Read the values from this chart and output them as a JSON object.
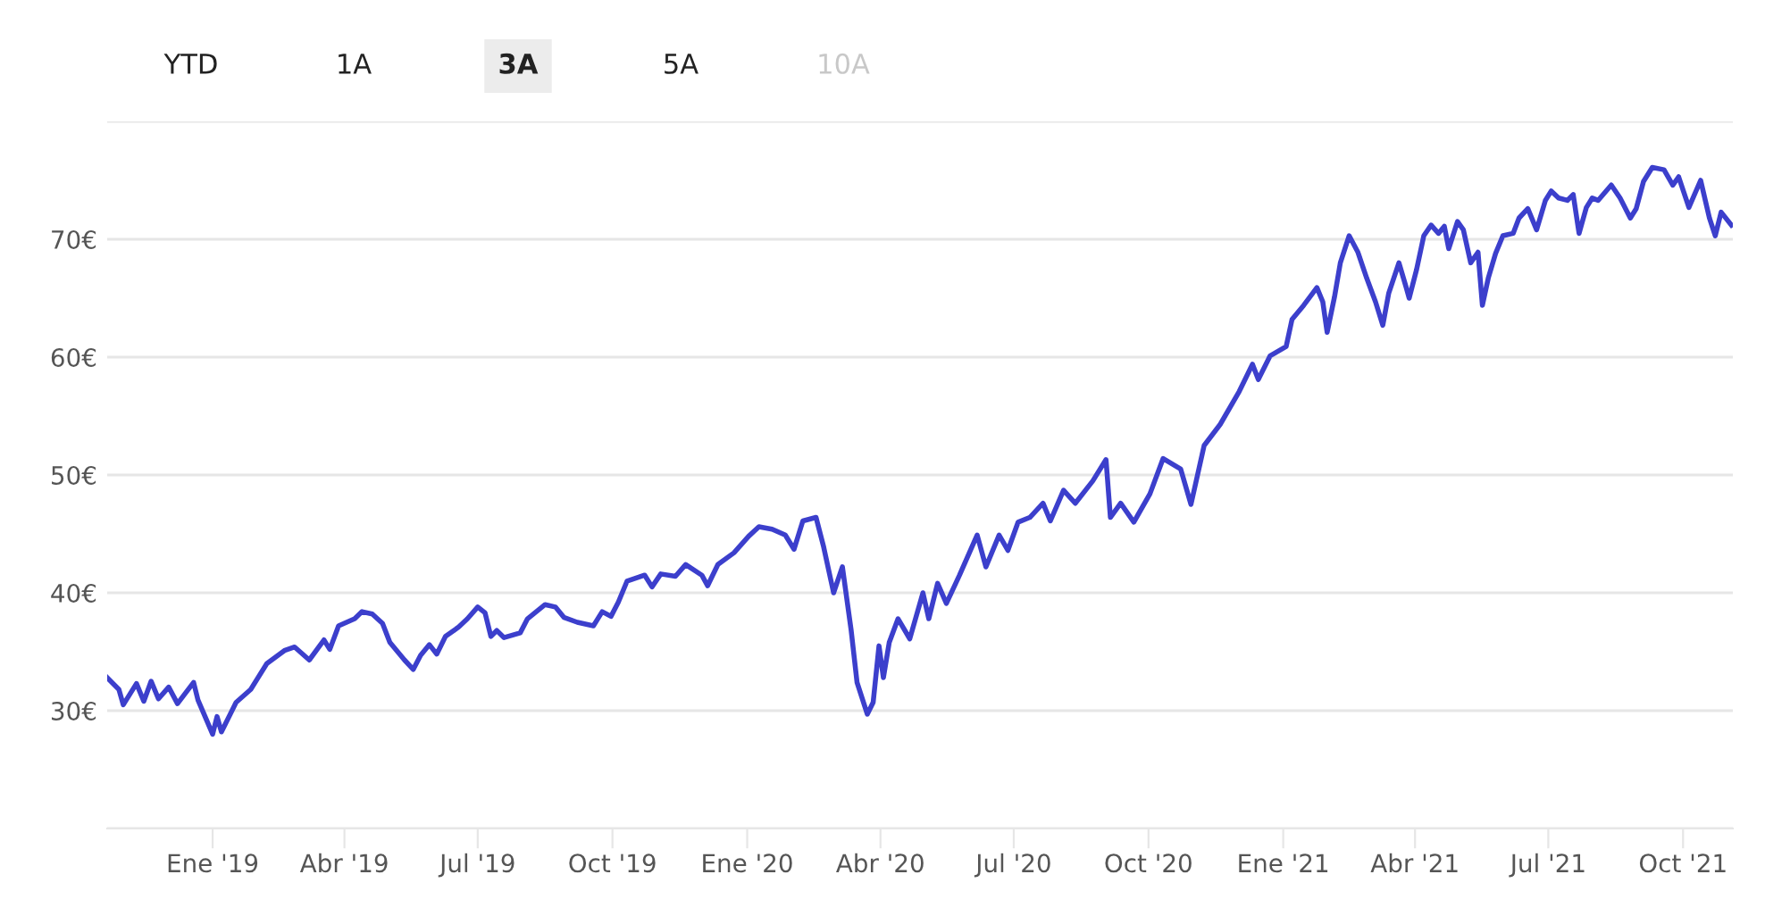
{
  "chart_data": {
    "type": "line",
    "annotations": [
      "YTD",
      "1A",
      "3A",
      "5A",
      "10A"
    ],
    "x": [
      "2018-10-21",
      "2018-10-29",
      "2018-11-01",
      "2018-11-10",
      "2018-11-15",
      "2018-11-20",
      "2018-11-25",
      "2018-12-02",
      "2018-12-08",
      "2018-12-19",
      "2018-12-22",
      "2019-01-01",
      "2019-01-04",
      "2019-01-07",
      "2019-01-17",
      "2019-01-27",
      "2019-02-07",
      "2019-02-19",
      "2019-02-26",
      "2019-03-08",
      "2019-03-18",
      "2019-03-22",
      "2019-03-28",
      "2019-04-08",
      "2019-04-13",
      "2019-04-20",
      "2019-04-27",
      "2019-05-02",
      "2019-05-12",
      "2019-05-18",
      "2019-05-23",
      "2019-05-29",
      "2019-06-03",
      "2019-06-09",
      "2019-06-18",
      "2019-06-24",
      "2019-07-01",
      "2019-07-06",
      "2019-07-10",
      "2019-07-14",
      "2019-07-19",
      "2019-07-30",
      "2019-08-04",
      "2019-08-16",
      "2019-08-23",
      "2019-08-29",
      "2019-09-07",
      "2019-09-18",
      "2019-09-24",
      "2019-09-30",
      "2019-10-05",
      "2019-10-11",
      "2019-10-23",
      "2019-10-28",
      "2019-11-03",
      "2019-11-13",
      "2019-11-20",
      "2019-12-01",
      "2019-12-05",
      "2019-12-12",
      "2019-12-23",
      "2020-01-02",
      "2020-01-09",
      "2020-01-18",
      "2020-01-27",
      "2020-02-02",
      "2020-02-08",
      "2020-02-17",
      "2020-02-22",
      "2020-02-29",
      "2020-03-06",
      "2020-03-12",
      "2020-03-16",
      "2020-03-23",
      "2020-03-27",
      "2020-03-31",
      "2020-04-03",
      "2020-04-07",
      "2020-04-13",
      "2020-04-21",
      "2020-04-30",
      "2020-05-04",
      "2020-05-10",
      "2020-05-16",
      "2020-05-25",
      "2020-06-06",
      "2020-06-12",
      "2020-06-21",
      "2020-06-27",
      "2020-07-04",
      "2020-07-12",
      "2020-07-21",
      "2020-07-26",
      "2020-08-04",
      "2020-08-12",
      "2020-08-24",
      "2020-09-02",
      "2020-09-05",
      "2020-09-12",
      "2020-09-21",
      "2020-10-02",
      "2020-10-11",
      "2020-10-23",
      "2020-10-30",
      "2020-11-08",
      "2020-11-19",
      "2020-12-02",
      "2020-12-11",
      "2020-12-15",
      "2020-12-23",
      "2021-01-03",
      "2021-01-07",
      "2021-01-15",
      "2021-01-24",
      "2021-01-28",
      "2021-01-31",
      "2021-02-05",
      "2021-02-09",
      "2021-02-15",
      "2021-02-21",
      "2021-02-27",
      "2021-03-05",
      "2021-03-10",
      "2021-03-14",
      "2021-03-21",
      "2021-03-26",
      "2021-03-28",
      "2021-04-02",
      "2021-04-07",
      "2021-04-12",
      "2021-04-17",
      "2021-04-21",
      "2021-04-24",
      "2021-04-30",
      "2021-05-04",
      "2021-05-09",
      "2021-05-14",
      "2021-05-17",
      "2021-05-21",
      "2021-05-26",
      "2021-05-31",
      "2021-06-07",
      "2021-06-11",
      "2021-06-17",
      "2021-06-23",
      "2021-06-29",
      "2021-07-03",
      "2021-07-08",
      "2021-07-14",
      "2021-07-18",
      "2021-07-22",
      "2021-07-27",
      "2021-07-31",
      "2021-08-04",
      "2021-08-13",
      "2021-08-19",
      "2021-08-26",
      "2021-08-30",
      "2021-09-04",
      "2021-09-10",
      "2021-09-18",
      "2021-09-24",
      "2021-09-28",
      "2021-10-05",
      "2021-10-13",
      "2021-10-19",
      "2021-10-23",
      "2021-10-27",
      "2021-11-03"
    ],
    "series": [
      {
        "color": "#3c3fcc",
        "values": [
          32.8,
          31.8,
          30.5,
          32.3,
          30.8,
          32.5,
          31.0,
          32.0,
          30.6,
          32.4,
          30.9,
          28.0,
          29.5,
          28.2,
          30.7,
          31.8,
          34.0,
          35.1,
          35.4,
          34.3,
          36.0,
          35.2,
          37.2,
          37.8,
          38.4,
          38.2,
          37.4,
          35.8,
          34.3,
          33.5,
          34.7,
          35.6,
          34.8,
          36.3,
          37.1,
          37.8,
          38.8,
          38.3,
          36.3,
          36.8,
          36.2,
          36.6,
          37.8,
          39.0,
          38.8,
          37.9,
          37.5,
          37.2,
          38.4,
          38.0,
          39.2,
          41.0,
          41.5,
          40.5,
          41.6,
          41.4,
          42.4,
          41.5,
          40.6,
          42.4,
          43.4,
          44.8,
          45.6,
          45.4,
          44.9,
          43.7,
          46.1,
          46.4,
          44.0,
          40.0,
          42.2,
          36.8,
          32.4,
          29.7,
          30.7,
          35.5,
          32.8,
          35.8,
          37.8,
          36.1,
          40.0,
          37.8,
          40.8,
          39.1,
          41.5,
          44.9,
          42.2,
          44.9,
          43.6,
          46.0,
          46.4,
          47.6,
          46.1,
          48.7,
          47.6,
          49.5,
          51.3,
          46.4,
          47.6,
          46.0,
          48.4,
          51.4,
          50.5,
          47.5,
          52.5,
          54.3,
          57.1,
          59.4,
          58.1,
          60.1,
          60.9,
          63.2,
          64.4,
          65.9,
          64.7,
          62.1,
          65.1,
          68.0,
          70.3,
          68.9,
          66.7,
          64.7,
          62.7,
          65.4,
          68.0,
          65.9,
          65.0,
          67.4,
          70.3,
          71.2,
          70.5,
          71.1,
          69.2,
          71.5,
          70.8,
          68.0,
          68.9,
          64.4,
          66.7,
          68.8,
          70.3,
          70.5,
          71.8,
          72.6,
          70.8,
          73.3,
          74.1,
          73.5,
          73.3,
          73.8,
          70.5,
          72.7,
          73.5,
          73.3,
          74.6,
          73.5,
          71.8,
          72.6,
          74.9,
          76.1,
          75.9,
          74.6,
          75.3,
          72.7,
          75.0,
          71.8,
          70.3,
          72.3,
          71.2
        ]
      }
    ],
    "xlim": [
      "2018-10-21",
      "2021-11-04"
    ],
    "xticks": [
      {
        "value": "2019-01-01",
        "label": "Ene '19"
      },
      {
        "value": "2019-04-01",
        "label": "Abr '19"
      },
      {
        "value": "2019-07-01",
        "label": "Jul '19"
      },
      {
        "value": "2019-10-01",
        "label": "Oct '19"
      },
      {
        "value": "2020-01-01",
        "label": "Ene '20"
      },
      {
        "value": "2020-04-01",
        "label": "Abr '20"
      },
      {
        "value": "2020-07-01",
        "label": "Jul '20"
      },
      {
        "value": "2020-10-01",
        "label": "Oct '20"
      },
      {
        "value": "2021-01-01",
        "label": "Ene '21"
      },
      {
        "value": "2021-04-01",
        "label": "Abr '21"
      },
      {
        "value": "2021-07-01",
        "label": "Jul '21"
      },
      {
        "value": "2021-10-01",
        "label": "Oct '21"
      }
    ],
    "ylim": [
      20,
      80
    ],
    "yticks": [
      {
        "value": 20,
        "label": null
      },
      {
        "value": 30,
        "label": "30€"
      },
      {
        "value": 40,
        "label": "40€"
      },
      {
        "value": 50,
        "label": "50€"
      },
      {
        "value": 60,
        "label": "60€"
      },
      {
        "value": 70,
        "label": "70€"
      },
      {
        "value": 80,
        "label": null
      }
    ],
    "grid": "y",
    "legend": false,
    "marker": "none",
    "line_style": "solid"
  }
}
